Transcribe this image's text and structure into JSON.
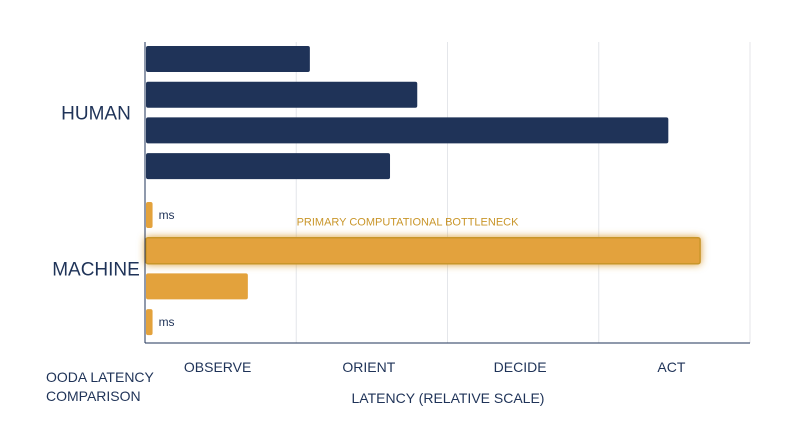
{
  "chart_data": {
    "type": "bar",
    "orientation": "horizontal",
    "columns": [
      "OBSERVE",
      "ORIENT",
      "DECIDE",
      "ACT"
    ],
    "xlabel": "LATENCY (RELATIVE SCALE)",
    "corner_label": [
      "OODA LATENCY",
      "COMPARISON"
    ],
    "xlim": [
      0,
      4
    ],
    "grid": true,
    "groups": [
      {
        "label": "HUMAN",
        "color": "#1f3358",
        "bars": [
          {
            "value": 1.09
          },
          {
            "value": 1.8
          },
          {
            "value": 3.46
          },
          {
            "value": 1.62
          }
        ]
      },
      {
        "label": "MACHINE",
        "color": "#e3a23c",
        "bars": [
          {
            "value": 0.05,
            "unit": "ms"
          },
          {
            "value": 3.67,
            "highlight": true,
            "annotation": "PRIMARY COMPUTATIONAL BOTTLENECK"
          },
          {
            "value": 0.68
          },
          {
            "value": 0.05,
            "unit": "ms"
          }
        ]
      }
    ]
  }
}
